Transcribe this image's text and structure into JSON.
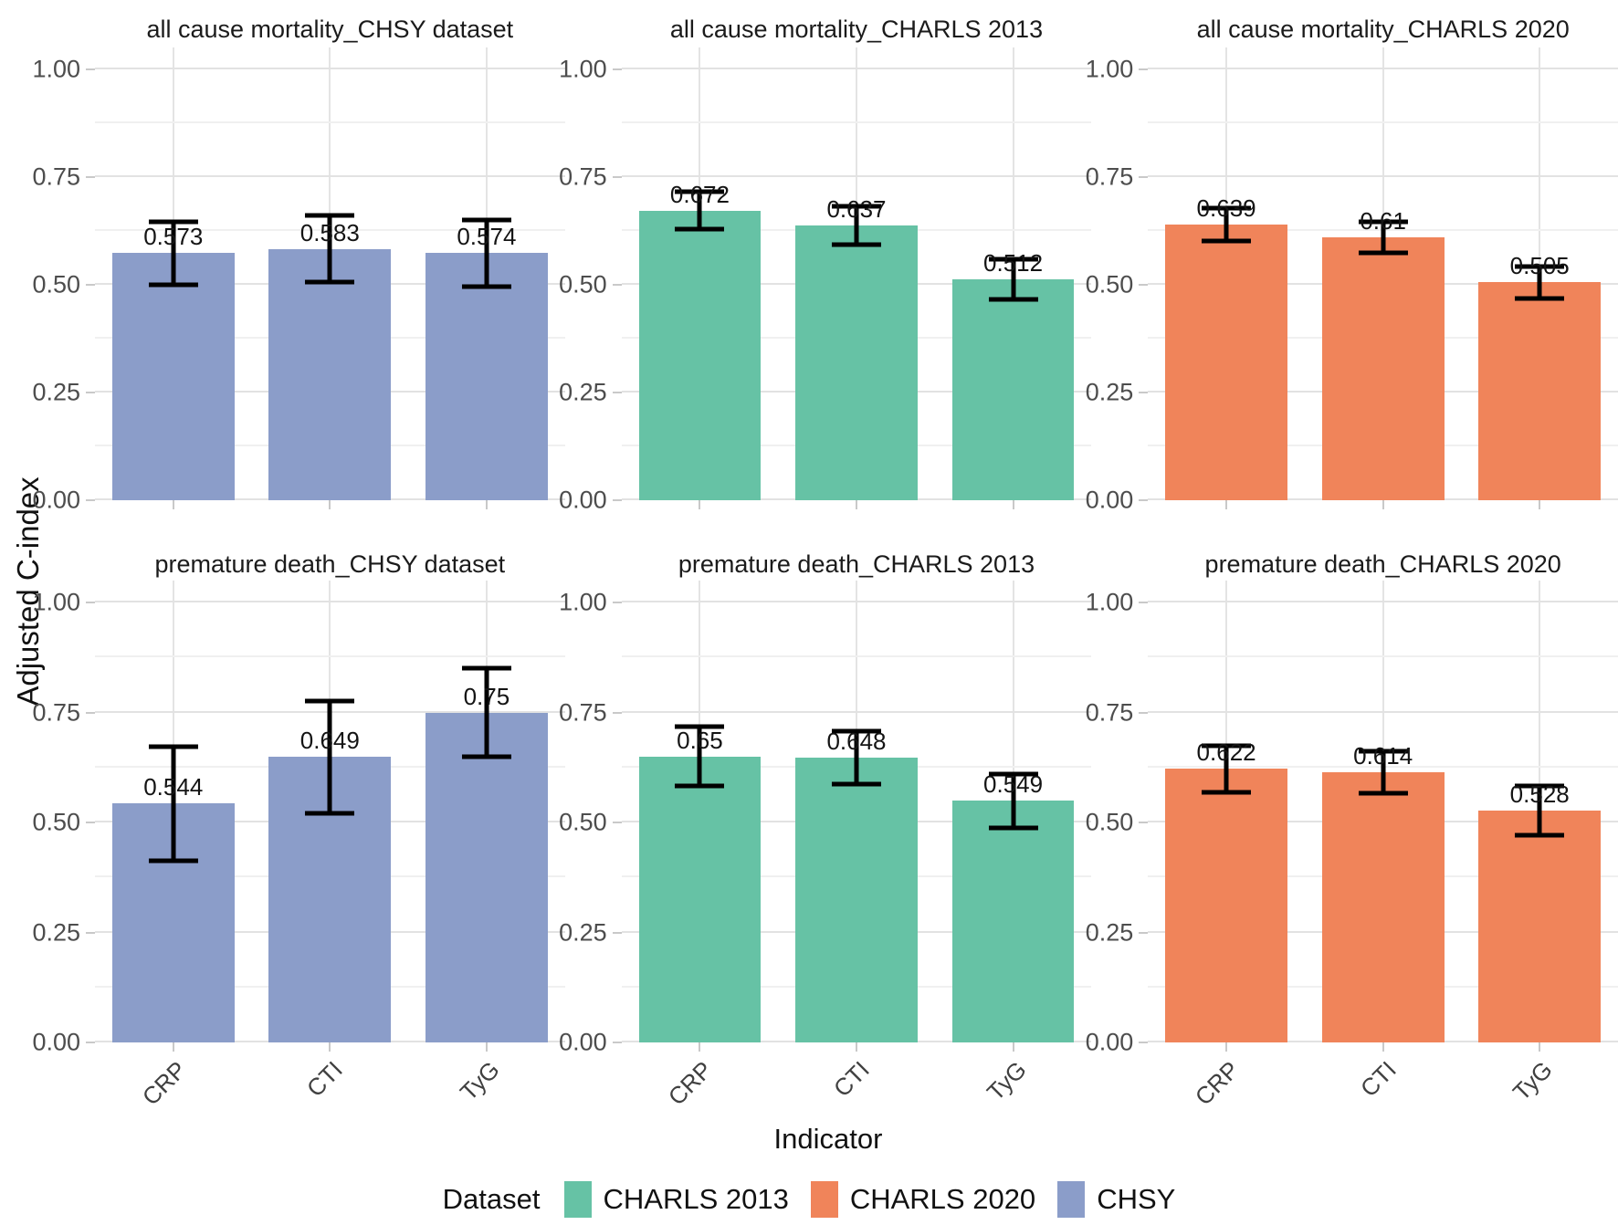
{
  "figure": {
    "y_axis_title": "Adjusted C-index",
    "x_axis_title": "Indicator",
    "legend": {
      "title": "Dataset",
      "entries": [
        {
          "label": "CHARLS 2013",
          "color": "#66C2A5"
        },
        {
          "label": "CHARLS 2020",
          "color": "#F0845A"
        },
        {
          "label": "CHSY",
          "color": "#8B9DC9"
        }
      ]
    },
    "style": {
      "panel_background": "#FFFFFF",
      "grid_major_color": "#E2E2E2",
      "grid_minor_color": "#F0F0F0",
      "error_bar_color": "#000000",
      "tick_text_color": "#4D4D4D"
    }
  },
  "axes": {
    "ytick_values": [
      0,
      0.25,
      0.5,
      0.75,
      1.0
    ],
    "ytick_labels": [
      "0.00",
      "0.25",
      "0.50",
      "0.75",
      "1.00"
    ],
    "ytick_minor": [
      0.125,
      0.375,
      0.625,
      0.875
    ],
    "ylim": [
      0,
      1.05
    ],
    "grid": true,
    "x_label_angle_deg": 45,
    "legend_position": "bottom"
  },
  "chart_data": [
    {
      "type": "bar",
      "title": "all cause mortality_CHSY dataset",
      "dataset": "CHSY",
      "color": "#8B9DC9",
      "categories": [
        "CRP",
        "CTI",
        "TyG"
      ],
      "values": [
        0.573,
        0.583,
        0.574
      ],
      "labels": [
        "0.573",
        "0.583",
        "0.574"
      ],
      "ci_low": [
        0.5,
        0.505,
        0.495
      ],
      "ci_high": [
        0.645,
        0.66,
        0.65
      ],
      "xlabel": "Indicator",
      "ylabel": "Adjusted C-index",
      "ylim": [
        0,
        1.05
      ]
    },
    {
      "type": "bar",
      "title": "all cause mortality_CHARLS 2013",
      "dataset": "CHARLS 2013",
      "color": "#66C2A5",
      "categories": [
        "CRP",
        "CTI",
        "TyG"
      ],
      "values": [
        0.672,
        0.637,
        0.512
      ],
      "labels": [
        "0.672",
        "0.637",
        "0.512"
      ],
      "ci_low": [
        0.628,
        0.592,
        0.465
      ],
      "ci_high": [
        0.716,
        0.682,
        0.558
      ],
      "xlabel": "Indicator",
      "ylabel": "Adjusted C-index",
      "ylim": [
        0,
        1.05
      ]
    },
    {
      "type": "bar",
      "title": "all cause mortality_CHARLS 2020",
      "dataset": "CHARLS 2020",
      "color": "#F0845A",
      "categories": [
        "CRP",
        "CTI",
        "TyG"
      ],
      "values": [
        0.639,
        0.61,
        0.505
      ],
      "labels": [
        "0.639",
        "0.61",
        "0.505"
      ],
      "ci_low": [
        0.601,
        0.574,
        0.467
      ],
      "ci_high": [
        0.677,
        0.646,
        0.543
      ],
      "xlabel": "Indicator",
      "ylabel": "Adjusted C-index",
      "ylim": [
        0,
        1.05
      ]
    },
    {
      "type": "bar",
      "title": "premature death_CHSY dataset",
      "dataset": "CHSY",
      "color": "#8B9DC9",
      "categories": [
        "CRP",
        "CTI",
        "TyG"
      ],
      "values": [
        0.544,
        0.649,
        0.75
      ],
      "labels": [
        "0.544",
        "0.649",
        "0.75"
      ],
      "ci_low": [
        0.414,
        0.521,
        0.649
      ],
      "ci_high": [
        0.672,
        0.777,
        0.851
      ],
      "xlabel": "Indicator",
      "ylabel": "Adjusted C-index",
      "ylim": [
        0,
        1.05
      ]
    },
    {
      "type": "bar",
      "title": "premature death_CHARLS 2013",
      "dataset": "CHARLS 2013",
      "color": "#66C2A5",
      "categories": [
        "CRP",
        "CTI",
        "TyG"
      ],
      "values": [
        0.65,
        0.648,
        0.549
      ],
      "labels": [
        "0.65",
        "0.648",
        "0.549"
      ],
      "ci_low": [
        0.583,
        0.588,
        0.487
      ],
      "ci_high": [
        0.717,
        0.708,
        0.611
      ],
      "xlabel": "Indicator",
      "ylabel": "Adjusted C-index",
      "ylim": [
        0,
        1.05
      ]
    },
    {
      "type": "bar",
      "title": "premature death_CHARLS 2020",
      "dataset": "CHARLS 2020",
      "color": "#F0845A",
      "categories": [
        "CRP",
        "CTI",
        "TyG"
      ],
      "values": [
        0.622,
        0.614,
        0.528
      ],
      "labels": [
        "0.622",
        "0.614",
        "0.528"
      ],
      "ci_low": [
        0.568,
        0.566,
        0.472
      ],
      "ci_high": [
        0.674,
        0.661,
        0.584
      ],
      "xlabel": "Indicator",
      "ylabel": "Adjusted C-index",
      "ylim": [
        0,
        1.05
      ]
    }
  ]
}
